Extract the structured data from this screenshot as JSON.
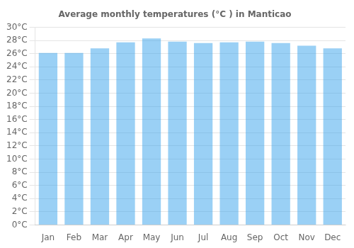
{
  "chart_data": {
    "type": "bar",
    "title": "Average monthly temperatures (°C ) in Manticao",
    "categories": [
      "Jan",
      "Feb",
      "Mar",
      "Apr",
      "May",
      "Jun",
      "Jul",
      "Aug",
      "Sep",
      "Oct",
      "Nov",
      "Dec"
    ],
    "values": [
      26.1,
      26.1,
      26.8,
      27.7,
      28.3,
      27.8,
      27.6,
      27.7,
      27.8,
      27.6,
      27.2,
      26.8
    ],
    "ylim": [
      0,
      30
    ],
    "yticks": [
      {
        "value": 0,
        "label": "0°C"
      },
      {
        "value": 2,
        "label": "2°C"
      },
      {
        "value": 4,
        "label": "4°C"
      },
      {
        "value": 6,
        "label": "6°C"
      },
      {
        "value": 8,
        "label": "8°C"
      },
      {
        "value": 10,
        "label": "10°C"
      },
      {
        "value": 12,
        "label": "12°C"
      },
      {
        "value": 14,
        "label": "14°C"
      },
      {
        "value": 16,
        "label": "16°C"
      },
      {
        "value": 18,
        "label": "18°C"
      },
      {
        "value": 20,
        "label": "20°C"
      },
      {
        "value": 22,
        "label": "22°C"
      },
      {
        "value": 24,
        "label": "24°C"
      },
      {
        "value": 26,
        "label": "26°C"
      },
      {
        "value": 28,
        "label": "28°C"
      },
      {
        "value": 30,
        "label": "30°C"
      }
    ],
    "grid": true
  }
}
